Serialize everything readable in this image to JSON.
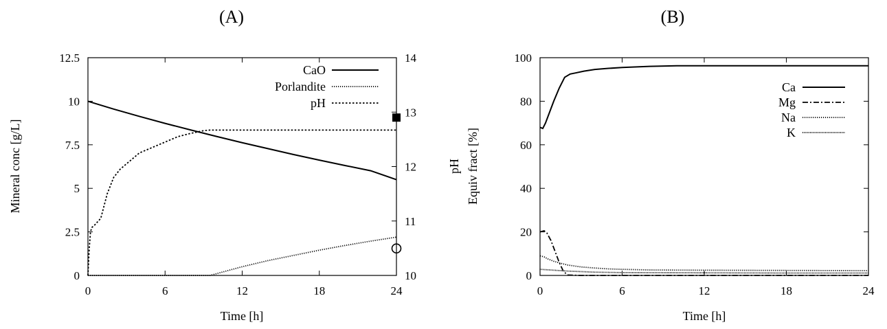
{
  "panel_labels": {
    "a": "(A)",
    "b": "(B)"
  },
  "chart_data": [
    {
      "type": "line",
      "panel": "(A)",
      "xlabel": "Time [h]",
      "ylabel": "Mineral conc [g/L]",
      "y2label": "pH",
      "xlim": [
        0,
        24
      ],
      "ylim": [
        0,
        12.5
      ],
      "y2lim": [
        10,
        14
      ],
      "xticks": [
        "0",
        "6",
        "12",
        "18",
        "24"
      ],
      "xtick_values": [
        0,
        6,
        12,
        18,
        24
      ],
      "yticks": [
        "0",
        "2.5",
        "5",
        "7.5",
        "10",
        "12.5"
      ],
      "ytick_values": [
        0,
        2.5,
        5,
        7.5,
        10,
        12.5
      ],
      "y2ticks": [
        "10",
        "11",
        "12",
        "13",
        "14"
      ],
      "y2tick_values": [
        10,
        11,
        12,
        13,
        14
      ],
      "legend_position": "top-right",
      "series": [
        {
          "name": "CaO",
          "axis": "left",
          "style": "solid",
          "x": [
            0,
            2,
            4,
            6,
            8,
            10,
            12,
            14,
            16,
            18,
            20,
            22,
            24
          ],
          "y": [
            10,
            9.55,
            9.13,
            8.73,
            8.35,
            7.98,
            7.62,
            7.28,
            6.94,
            6.62,
            6.31,
            6.01,
            5.5
          ]
        },
        {
          "name": "Porlandite",
          "axis": "left",
          "style": "dotted",
          "x": [
            0,
            9.5,
            12,
            14,
            16,
            18,
            20,
            22,
            24
          ],
          "y": [
            0,
            0,
            0.5,
            0.85,
            1.15,
            1.45,
            1.72,
            1.97,
            2.2
          ]
        },
        {
          "name": "pH",
          "axis": "right",
          "style": "dashed",
          "x": [
            0,
            0.1,
            0.2,
            0.3,
            0.5,
            1,
            1.5,
            2,
            2.5,
            3,
            4,
            5,
            6,
            7,
            8,
            9,
            9.5,
            12,
            18,
            24
          ],
          "y": [
            10,
            10.5,
            10.8,
            10.88,
            10.92,
            11.05,
            11.5,
            11.8,
            11.95,
            12.05,
            12.25,
            12.35,
            12.45,
            12.55,
            12.61,
            12.66,
            12.67,
            12.67,
            12.67,
            12.67
          ]
        }
      ],
      "markers": [
        {
          "shape": "filled-square",
          "axis": "right",
          "x": 24,
          "y": 12.9
        },
        {
          "shape": "open-circle",
          "axis": "left",
          "x": 24,
          "y": 1.55
        }
      ]
    },
    {
      "type": "line",
      "panel": "(B)",
      "xlabel": "Time [h]",
      "ylabel": "Equiv fract [%]",
      "xlim": [
        0,
        24
      ],
      "ylim": [
        0,
        100
      ],
      "xticks": [
        "0",
        "6",
        "12",
        "18",
        "24"
      ],
      "xtick_values": [
        0,
        6,
        12,
        18,
        24
      ],
      "yticks": [
        "0",
        "20",
        "40",
        "60",
        "80",
        "100"
      ],
      "ytick_values": [
        0,
        20,
        40,
        60,
        80,
        100
      ],
      "legend_position": "right",
      "series": [
        {
          "name": "Ca",
          "style": "solid",
          "x": [
            0,
            0.2,
            0.4,
            0.7,
            1,
            1.4,
            1.8,
            2.2,
            2.6,
            3.2,
            4,
            5,
            6,
            8,
            10,
            12,
            18,
            24
          ],
          "y": [
            68,
            67.5,
            70,
            75,
            80,
            86,
            91,
            92.5,
            93,
            93.8,
            94.6,
            95.1,
            95.5,
            96,
            96.3,
            96.3,
            96.3,
            96.3
          ]
        },
        {
          "name": "Mg",
          "style": "dashdot",
          "x": [
            0,
            0.3,
            0.5,
            0.8,
            1.1,
            1.4,
            1.7,
            2,
            3,
            6,
            12,
            18,
            24
          ],
          "y": [
            20,
            20.5,
            19.5,
            16,
            11,
            6,
            2,
            0.2,
            0,
            0,
            0,
            0,
            0
          ]
        },
        {
          "name": "Na",
          "style": "dotted",
          "x": [
            0,
            0.3,
            0.6,
            1,
            1.5,
            2,
            3,
            4,
            5,
            6,
            8,
            12,
            18,
            24
          ],
          "y": [
            9,
            8.5,
            7.5,
            6.5,
            5.6,
            4.8,
            3.9,
            3.4,
            3.0,
            2.8,
            2.5,
            2.4,
            2.3,
            2.2
          ]
        },
        {
          "name": "K",
          "style": "densedot",
          "x": [
            0,
            2,
            4,
            6,
            12,
            18,
            24
          ],
          "y": [
            2.8,
            2.0,
            1.5,
            1.3,
            1.2,
            1.1,
            1.1
          ]
        }
      ]
    }
  ]
}
